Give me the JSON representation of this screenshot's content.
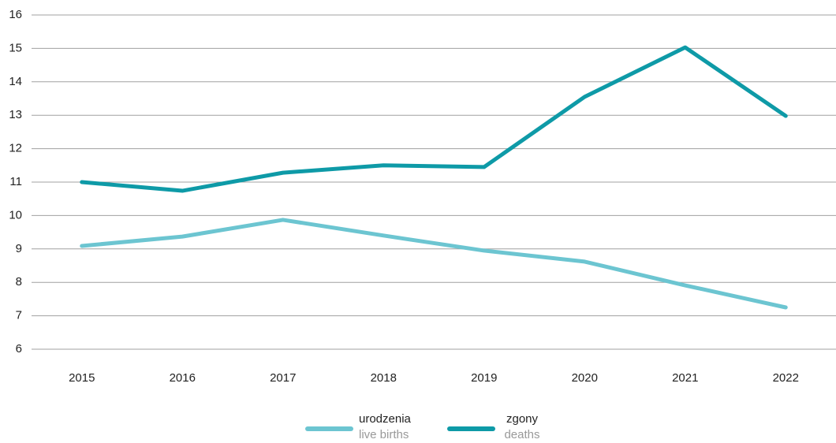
{
  "chart_data": {
    "type": "line",
    "categories": [
      "2015",
      "2016",
      "2017",
      "2018",
      "2019",
      "2020",
      "2021",
      "2022"
    ],
    "series": [
      {
        "name": "urodzenia",
        "name_en": "live births",
        "color": "#6cc5d1",
        "values": [
          9.09,
          9.37,
          9.87,
          9.4,
          8.95,
          8.62,
          7.91,
          7.25
        ]
      },
      {
        "name": "zgony",
        "name_en": "deaths",
        "color": "#0e9aa7",
        "values": [
          11.0,
          10.74,
          11.28,
          11.5,
          11.45,
          13.55,
          15.03,
          12.98
        ]
      }
    ],
    "ylim": [
      6,
      16
    ],
    "yticks": [
      6,
      7,
      8,
      9,
      10,
      11,
      12,
      13,
      14,
      15,
      16
    ],
    "grid": true,
    "legend": "bottom"
  }
}
